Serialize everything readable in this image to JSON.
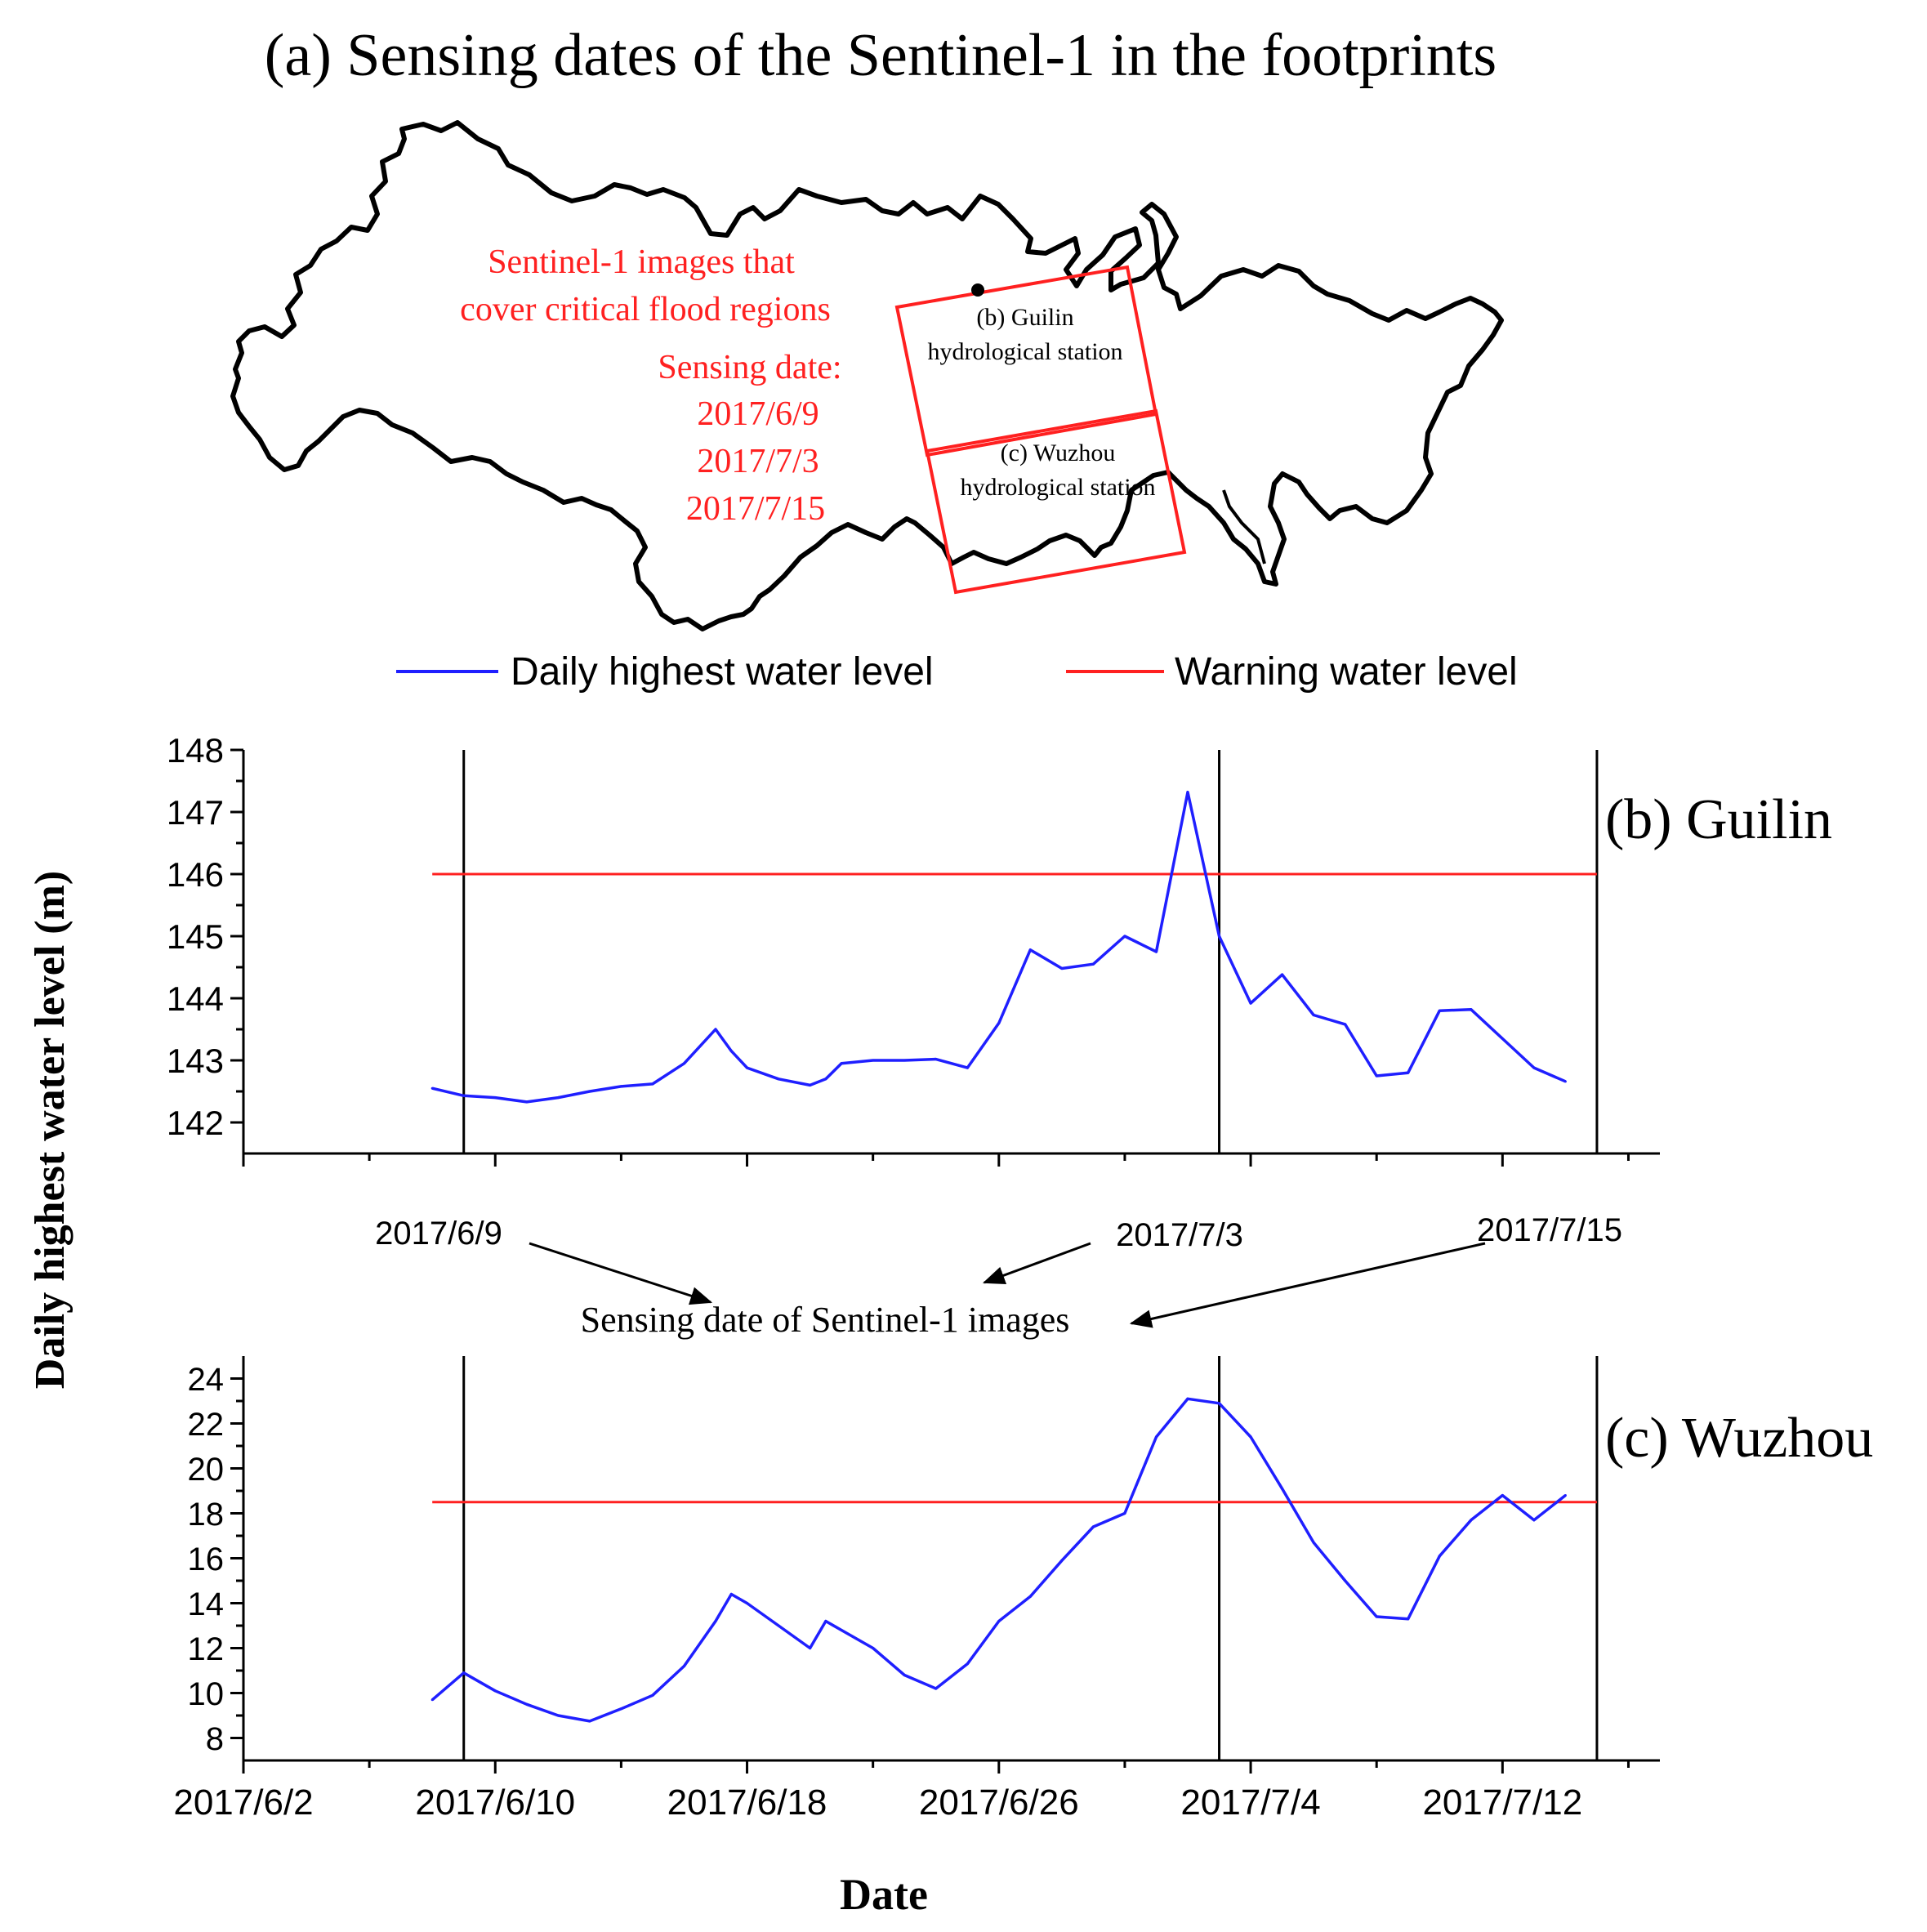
{
  "figure": {
    "map_title": "(a) Sensing dates of the Sentinel-1 in the footprints",
    "map_note_lines": [
      "Sentinel-1 images  that",
      "cover critical flood regions",
      "Sensing date:",
      "2017/6/9",
      "2017/7/3",
      "2017/7/15"
    ],
    "footprint_b_lines": [
      "(b) Guilin",
      "hydrological station"
    ],
    "footprint_c_lines": [
      "(c) Wuzhou",
      "hydrological station"
    ],
    "sensing_caption": "Sensing date of Sentinel-1 images",
    "sensing_labels": [
      "2017/6/9",
      "2017/7/3",
      "2017/7/15"
    ],
    "colors": {
      "daily": "#1f1fff",
      "warning": "#ff2020",
      "annotation": "#ff2020",
      "boundary": "#000000"
    },
    "icons": {
      "station_marker": "black-dot-icon",
      "annotation_arrow": "arrow-icon"
    }
  },
  "chart_data": [
    {
      "type": "line",
      "panel_label": "(b) Guilin",
      "ylabel": "Daily highest water level (m)",
      "xlabel": "Date",
      "legend": [
        "Daily highest water level",
        "Warning water level"
      ],
      "legend_placement": "top",
      "ylim": [
        141.5,
        148
      ],
      "yticks": [
        142,
        143,
        144,
        145,
        146,
        147,
        148
      ],
      "xlim": [
        "2017/6/2",
        "2017/7/17"
      ],
      "xticks": [
        "2017/6/2",
        "2017/6/10",
        "2017/6/18",
        "2017/6/26",
        "2017/7/4",
        "2017/7/12"
      ],
      "vlines": [
        "2017/6/9",
        "2017/7/3",
        "2017/7/15"
      ],
      "series": [
        {
          "name": "Daily highest water level",
          "x": [
            "2017/6/8",
            "2017/6/9",
            "2017/6/10",
            "2017/6/11",
            "2017/6/12",
            "2017/6/13",
            "2017/6/14",
            "2017/6/15",
            "2017/6/16",
            "2017/6/17",
            "2017/6/17 12:00",
            "2017/6/18",
            "2017/6/19",
            "2017/6/20",
            "2017/6/20 12:00",
            "2017/6/21",
            "2017/6/22",
            "2017/6/23",
            "2017/6/24",
            "2017/6/25",
            "2017/6/26",
            "2017/6/27",
            "2017/6/28",
            "2017/6/29",
            "2017/6/30",
            "2017/7/1",
            "2017/7/2",
            "2017/7/3",
            "2017/7/4",
            "2017/7/5",
            "2017/7/6",
            "2017/7/7",
            "2017/7/8",
            "2017/7/9",
            "2017/7/10",
            "2017/7/11",
            "2017/7/12",
            "2017/7/13",
            "2017/7/14"
          ],
          "y": [
            142.55,
            142.43,
            142.4,
            142.33,
            142.4,
            142.5,
            142.58,
            142.62,
            142.95,
            143.5,
            143.15,
            142.88,
            142.7,
            142.6,
            142.7,
            142.95,
            143.0,
            143.0,
            143.02,
            142.88,
            143.6,
            144.78,
            144.48,
            144.55,
            145.0,
            144.75,
            147.32,
            145.0,
            143.92,
            144.38,
            143.73,
            143.58,
            142.75,
            142.8,
            143.8,
            143.82,
            143.35,
            142.88,
            142.66
          ]
        },
        {
          "name": "Warning water level",
          "x": [
            "2017/6/8",
            "2017/7/15"
          ],
          "y": [
            146.0,
            146.0
          ]
        }
      ]
    },
    {
      "type": "line",
      "panel_label": "(c) Wuzhou",
      "ylabel": "Daily highest water level (m)",
      "xlabel": "Date",
      "ylim": [
        7,
        25
      ],
      "yticks": [
        8,
        10,
        12,
        14,
        16,
        18,
        20,
        22,
        24
      ],
      "xlim": [
        "2017/6/2",
        "2017/7/17"
      ],
      "xticks": [
        "2017/6/2",
        "2017/6/10",
        "2017/6/18",
        "2017/6/26",
        "2017/7/4",
        "2017/7/12"
      ],
      "vlines": [
        "2017/6/9",
        "2017/7/3",
        "2017/7/15"
      ],
      "series": [
        {
          "name": "Daily highest water level",
          "x": [
            "2017/6/8",
            "2017/6/9",
            "2017/6/10",
            "2017/6/11",
            "2017/6/12",
            "2017/6/13",
            "2017/6/14",
            "2017/6/15",
            "2017/6/16",
            "2017/6/17",
            "2017/6/17 12:00",
            "2017/6/18",
            "2017/6/19",
            "2017/6/20",
            "2017/6/20 12:00",
            "2017/6/21",
            "2017/6/22",
            "2017/6/23",
            "2017/6/24",
            "2017/6/25",
            "2017/6/26",
            "2017/6/27",
            "2017/6/28",
            "2017/6/29",
            "2017/6/30",
            "2017/7/1",
            "2017/7/2",
            "2017/7/3",
            "2017/7/4",
            "2017/7/5",
            "2017/7/6",
            "2017/7/7",
            "2017/7/8",
            "2017/7/9",
            "2017/7/10",
            "2017/7/11",
            "2017/7/12",
            "2017/7/13",
            "2017/7/14"
          ],
          "y": [
            9.7,
            10.9,
            10.1,
            9.5,
            9.0,
            8.75,
            9.3,
            9.9,
            11.2,
            13.2,
            14.4,
            14.0,
            13.0,
            12.0,
            13.2,
            12.8,
            12.0,
            10.8,
            10.2,
            11.3,
            13.2,
            14.3,
            15.9,
            17.4,
            18.0,
            21.4,
            23.1,
            22.9,
            21.4,
            19.1,
            16.7,
            15.0,
            13.4,
            13.3,
            16.1,
            17.7,
            18.8,
            17.7,
            18.8
          ]
        },
        {
          "name": "Warning water level",
          "x": [
            "2017/6/8",
            "2017/7/15"
          ],
          "y": [
            18.5,
            18.5
          ]
        }
      ]
    }
  ]
}
